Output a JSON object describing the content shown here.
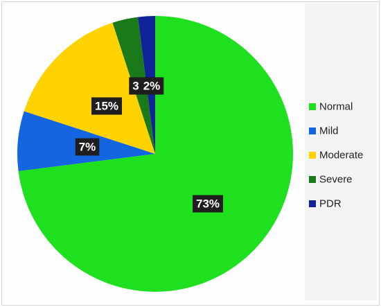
{
  "chart_data": {
    "type": "pie",
    "title": "",
    "start_angle_deg": 0,
    "direction": "clockwise",
    "legend_position": "right",
    "slices": [
      {
        "name": "Normal",
        "value": 73,
        "label": "73%",
        "color": "#1ee01e"
      },
      {
        "name": "Mild",
        "value": 7,
        "label": "7%",
        "color": "#1466e0"
      },
      {
        "name": "Moderate",
        "value": 15,
        "label": "15%",
        "color": "#ffd200"
      },
      {
        "name": "Severe",
        "value": 3,
        "label": "3",
        "color": "#1a7a1a"
      },
      {
        "name": "PDR",
        "value": 2,
        "label": "2%",
        "color": "#12239a"
      }
    ]
  }
}
